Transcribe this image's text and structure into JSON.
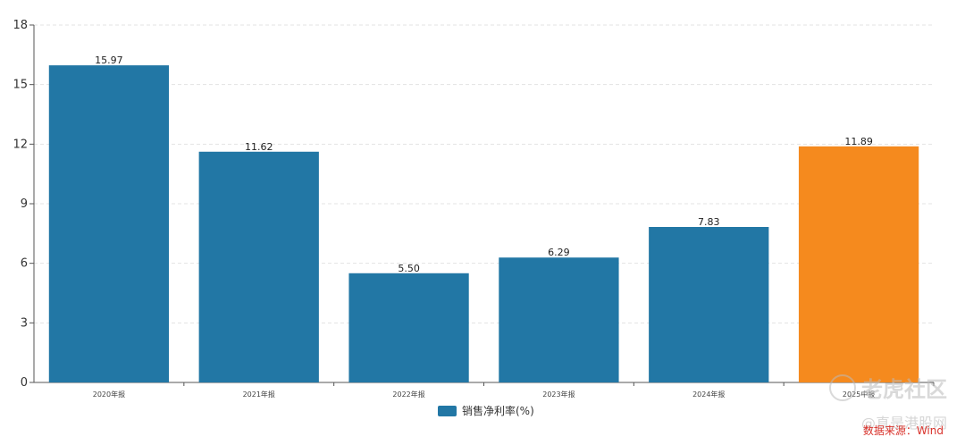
{
  "chart_data": {
    "type": "bar",
    "categories": [
      "2020年报",
      "2021年报",
      "2022年报",
      "2023年报",
      "2024年报",
      "2025中报"
    ],
    "values": [
      15.97,
      11.62,
      5.5,
      6.29,
      7.83,
      11.89
    ],
    "value_labels": [
      "15.97",
      "11.62",
      "5.50",
      "6.29",
      "7.83",
      "11.89"
    ],
    "bar_colors": [
      "#2277a5",
      "#2277a5",
      "#2277a5",
      "#2277a5",
      "#2277a5",
      "#f58a1e"
    ],
    "series": [
      {
        "name": "销售净利率(%)",
        "values": [
          15.97,
          11.62,
          5.5,
          6.29,
          7.83,
          11.89
        ]
      }
    ],
    "ylim": [
      0,
      18
    ],
    "yticks": [
      0,
      3,
      6,
      9,
      12,
      15,
      18
    ],
    "grid": true,
    "legend_position": "bottom-center",
    "xlabel": "",
    "ylabel": ""
  },
  "legend": {
    "label": "销售净利率(%)",
    "color": "#2277a5"
  },
  "watermark": {
    "logo_text": "老虎社区",
    "sub_text": "@真是港股网"
  },
  "source": "数据来源：Wind"
}
